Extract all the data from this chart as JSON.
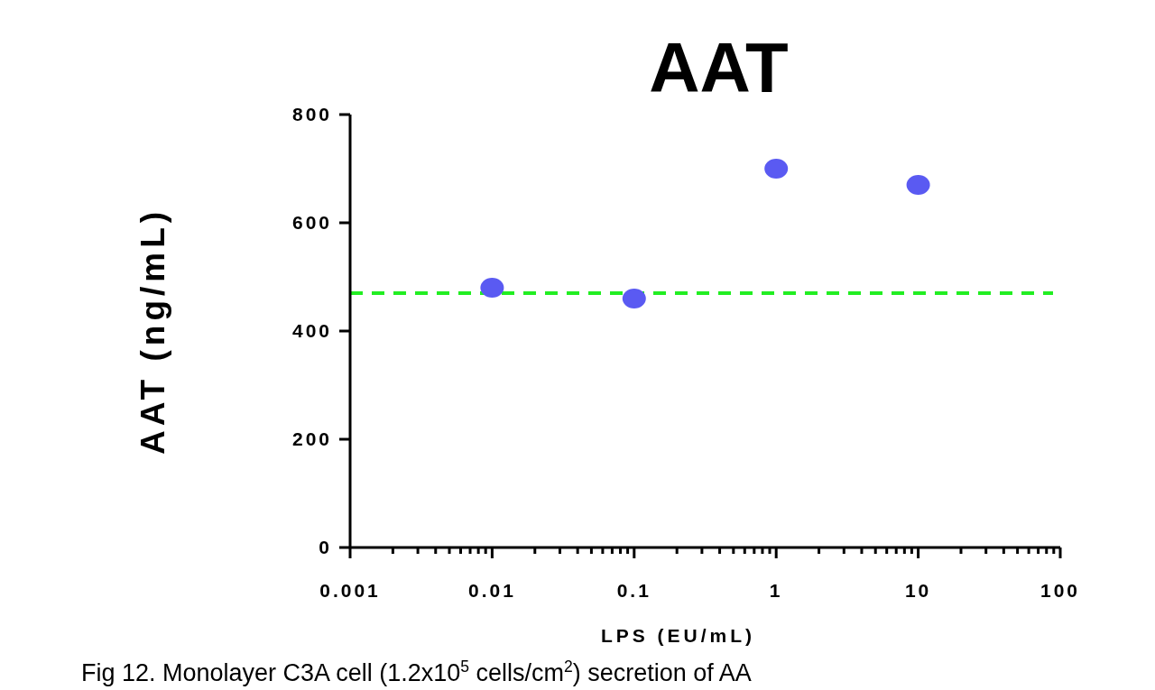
{
  "chart_data": {
    "type": "scatter",
    "title": "AAT",
    "xlabel": "LPS (EU/mL)",
    "ylabel": "AAT (ng/mL)",
    "x": [
      0.01,
      0.1,
      1,
      10
    ],
    "series": [
      {
        "color": "#5a5af2",
        "values": [
          480,
          460,
          700,
          670
        ]
      }
    ],
    "marker": "circle",
    "log": "x",
    "grid": false,
    "xlim": [
      0.001,
      100
    ],
    "ylim": [
      0,
      800
    ],
    "xticks": [
      0.001,
      {
        "value": 0.002,
        "label": null
      },
      {
        "value": 0.003,
        "label": null
      },
      {
        "value": 0.004,
        "label": null
      },
      {
        "value": 0.005,
        "label": null
      },
      {
        "value": 0.006,
        "label": null
      },
      {
        "value": 0.007,
        "label": null
      },
      {
        "value": 0.008,
        "label": null
      },
      {
        "value": 0.009,
        "label": null
      },
      0.01,
      {
        "value": 0.02,
        "label": null
      },
      {
        "value": 0.03,
        "label": null
      },
      {
        "value": 0.04,
        "label": null
      },
      {
        "value": 0.05,
        "label": null
      },
      {
        "value": 0.06,
        "label": null
      },
      {
        "value": 0.07,
        "label": null
      },
      {
        "value": 0.08,
        "label": null
      },
      {
        "value": 0.09,
        "label": null
      },
      0.1,
      {
        "value": 0.2,
        "label": null
      },
      {
        "value": 0.3,
        "label": null
      },
      {
        "value": 0.4,
        "label": null
      },
      {
        "value": 0.5,
        "label": null
      },
      {
        "value": 0.6,
        "label": null
      },
      {
        "value": 0.7,
        "label": null
      },
      {
        "value": 0.8,
        "label": null
      },
      {
        "value": 0.9,
        "label": null
      },
      1,
      {
        "value": 2,
        "label": null
      },
      {
        "value": 3,
        "label": null
      },
      {
        "value": 4,
        "label": null
      },
      {
        "value": 5,
        "label": null
      },
      {
        "value": 6,
        "label": null
      },
      {
        "value": 7,
        "label": null
      },
      {
        "value": 8,
        "label": null
      },
      {
        "value": 9,
        "label": null
      },
      10,
      {
        "value": 20,
        "label": null
      },
      {
        "value": 30,
        "label": null
      },
      {
        "value": 40,
        "label": null
      },
      {
        "value": 50,
        "label": null
      },
      {
        "value": 60,
        "label": null
      },
      {
        "value": 70,
        "label": null
      },
      {
        "value": 80,
        "label": null
      },
      {
        "value": 90,
        "label": null
      },
      100
    ],
    "yticks": [
      0,
      200,
      400,
      600,
      800
    ],
    "ref_lines": [
      {
        "axis": "y",
        "value": 470,
        "color": "#22ee22",
        "line_style": "dashed"
      }
    ],
    "annotations": [
      "Fig 12. Monolayer C3A cell (1.2x10$^{5}$ cells/cm$^{2}$) secretion of AA"
    ]
  }
}
